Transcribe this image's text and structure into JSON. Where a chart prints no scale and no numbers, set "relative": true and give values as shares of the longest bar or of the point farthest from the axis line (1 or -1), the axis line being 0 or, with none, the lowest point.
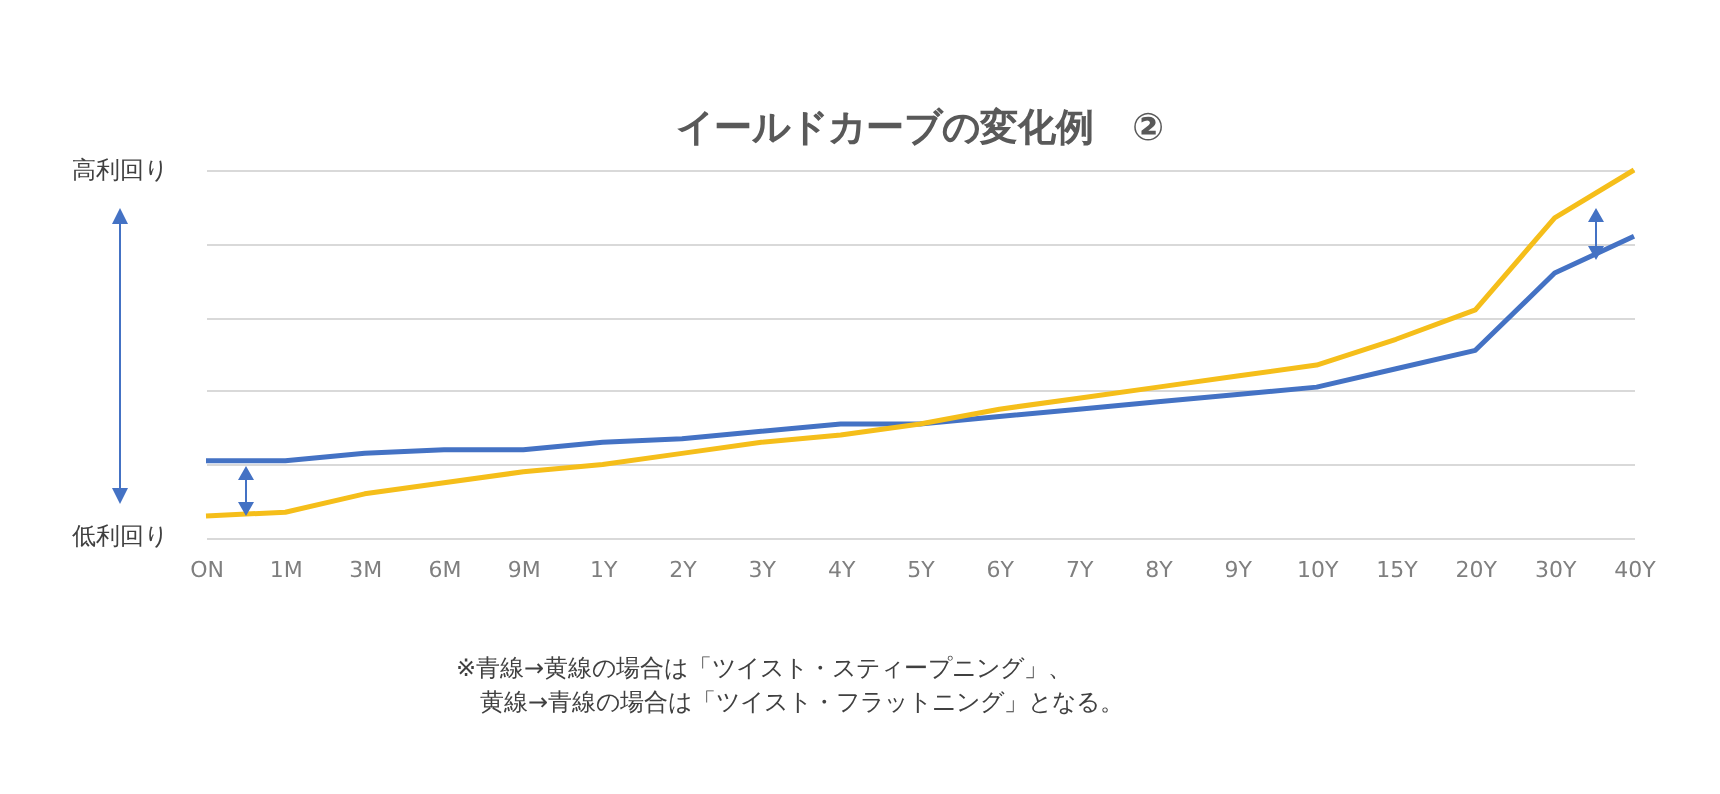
{
  "chart_data": {
    "type": "line",
    "title": "イールドカーブの変化例　②",
    "relative": true,
    "grid": "y",
    "line_style": "solid",
    "categories": [
      "ON",
      "1M",
      "3M",
      "6M",
      "9M",
      "1Y",
      "2Y",
      "3Y",
      "4Y",
      "5Y",
      "6Y",
      "7Y",
      "8Y",
      "9Y",
      "10Y",
      "15Y",
      "20Y",
      "30Y",
      "40Y"
    ],
    "series": [
      {
        "color": "#4472c4",
        "values": [
          0.21,
          0.21,
          0.23,
          0.24,
          0.24,
          0.26,
          0.27,
          0.29,
          0.31,
          0.31,
          0.33,
          0.35,
          0.37,
          0.39,
          0.41,
          0.46,
          0.51,
          0.72,
          0.82
        ]
      },
      {
        "color": "#f5be1a",
        "values": [
          0.06,
          0.07,
          0.12,
          0.15,
          0.18,
          0.2,
          0.23,
          0.26,
          0.28,
          0.31,
          0.35,
          0.38,
          0.41,
          0.44,
          0.47,
          0.54,
          0.62,
          0.87,
          1
        ]
      }
    ],
    "annotations": [
      "高利回り",
      "低利回り",
      "※青線→黄線の場合は「ツイスト・スティープニング」、",
      "黄線→青線の場合は「ツイスト・フラットニング」となる。"
    ]
  }
}
